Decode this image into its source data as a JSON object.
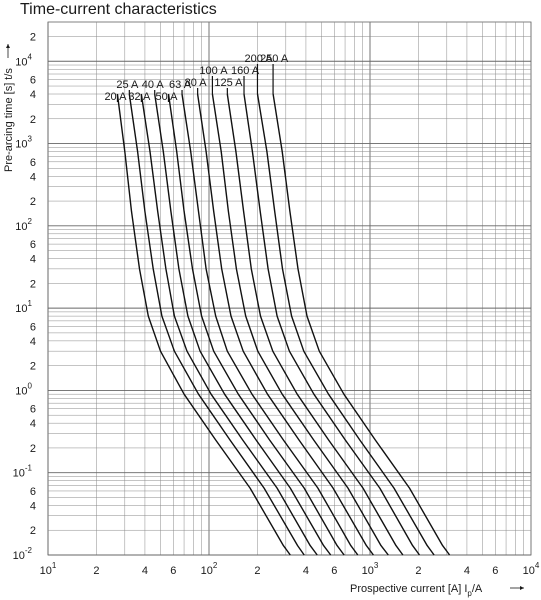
{
  "chart_data": {
    "type": "line",
    "title": "Time-current characteristics",
    "xlabel": "Prospective current [A]  I",
    "xlabel_sub": "p",
    "xlabel_unit": "/A",
    "ylabel": "Pre-arcing time [s]  t/s",
    "x_scale": "log",
    "y_scale": "log",
    "xlim": [
      10,
      10000
    ],
    "ylim": [
      0.01,
      30000
    ],
    "grid": true,
    "x_ticks": [
      {
        "v": 10,
        "base": "10",
        "exp": "1"
      },
      {
        "v": 20,
        "text": "2"
      },
      {
        "v": 40,
        "text": "4"
      },
      {
        "v": 60,
        "text": "6"
      },
      {
        "v": 100,
        "base": "10",
        "exp": "2"
      },
      {
        "v": 200,
        "text": "2"
      },
      {
        "v": 400,
        "text": "4"
      },
      {
        "v": 600,
        "text": "6"
      },
      {
        "v": 1000,
        "base": "10",
        "exp": "3"
      },
      {
        "v": 2000,
        "text": "2"
      },
      {
        "v": 4000,
        "text": "4"
      },
      {
        "v": 6000,
        "text": "6"
      },
      {
        "v": 10000,
        "base": "10",
        "exp": "4"
      }
    ],
    "y_ticks": [
      {
        "v": 0.01,
        "base": "10",
        "exp": "-2"
      },
      {
        "v": 0.02,
        "text": "2"
      },
      {
        "v": 0.04,
        "text": "4"
      },
      {
        "v": 0.06,
        "text": "6"
      },
      {
        "v": 0.1,
        "base": "10",
        "exp": "-1"
      },
      {
        "v": 0.2,
        "text": "2"
      },
      {
        "v": 0.4,
        "text": "4"
      },
      {
        "v": 0.6,
        "text": "6"
      },
      {
        "v": 1,
        "base": "10",
        "exp": "0"
      },
      {
        "v": 2,
        "text": "2"
      },
      {
        "v": 4,
        "text": "4"
      },
      {
        "v": 6,
        "text": "6"
      },
      {
        "v": 10,
        "base": "10",
        "exp": "1"
      },
      {
        "v": 20,
        "text": "2"
      },
      {
        "v": 40,
        "text": "4"
      },
      {
        "v": 60,
        "text": "6"
      },
      {
        "v": 100,
        "base": "10",
        "exp": "2"
      },
      {
        "v": 200,
        "text": "2"
      },
      {
        "v": 400,
        "text": "4"
      },
      {
        "v": 600,
        "text": "6"
      },
      {
        "v": 1000,
        "base": "10",
        "exp": "3"
      },
      {
        "v": 2000,
        "text": "2"
      },
      {
        "v": 4000,
        "text": "4"
      },
      {
        "v": 6000,
        "text": "6"
      },
      {
        "v": 10000,
        "base": "10",
        "exp": "4"
      },
      {
        "v": 20000,
        "text": "2"
      }
    ],
    "series": [
      {
        "name": "20 A",
        "points": [
          [
            27,
            4000
          ],
          [
            30,
            800
          ],
          [
            33,
            150
          ],
          [
            37,
            30
          ],
          [
            42,
            8
          ],
          [
            50,
            3
          ],
          [
            70,
            0.9
          ],
          [
            110,
            0.25
          ],
          [
            180,
            0.065
          ],
          [
            290,
            0.013
          ],
          [
            320,
            0.01
          ]
        ]
      },
      {
        "name": "25 A",
        "points": [
          [
            32,
            4000
          ],
          [
            36,
            800
          ],
          [
            40,
            150
          ],
          [
            45,
            30
          ],
          [
            51,
            8
          ],
          [
            61,
            3
          ],
          [
            86,
            0.9
          ],
          [
            135,
            0.25
          ],
          [
            220,
            0.065
          ],
          [
            355,
            0.013
          ],
          [
            390,
            0.01
          ]
        ]
      },
      {
        "name": "32 A",
        "points": [
          [
            38,
            4000
          ],
          [
            43,
            800
          ],
          [
            48,
            150
          ],
          [
            54,
            30
          ],
          [
            61,
            8
          ],
          [
            73,
            3
          ],
          [
            103,
            0.9
          ],
          [
            162,
            0.25
          ],
          [
            265,
            0.065
          ],
          [
            425,
            0.013
          ],
          [
            470,
            0.01
          ]
        ]
      },
      {
        "name": "40 A",
        "points": [
          [
            46,
            4000
          ],
          [
            52,
            800
          ],
          [
            58,
            150
          ],
          [
            65,
            30
          ],
          [
            74,
            8
          ],
          [
            88,
            3
          ],
          [
            125,
            0.9
          ],
          [
            196,
            0.25
          ],
          [
            320,
            0.065
          ],
          [
            515,
            0.013
          ],
          [
            570,
            0.01
          ]
        ]
      },
      {
        "name": "50 A",
        "points": [
          [
            56,
            4000
          ],
          [
            63,
            800
          ],
          [
            70,
            150
          ],
          [
            79,
            30
          ],
          [
            90,
            8
          ],
          [
            107,
            3
          ],
          [
            152,
            0.9
          ],
          [
            238,
            0.25
          ],
          [
            390,
            0.065
          ],
          [
            625,
            0.013
          ],
          [
            690,
            0.01
          ]
        ]
      },
      {
        "name": "63 A",
        "points": [
          [
            68,
            4000
          ],
          [
            77,
            800
          ],
          [
            86,
            150
          ],
          [
            96,
            30
          ],
          [
            110,
            8
          ],
          [
            130,
            3
          ],
          [
            185,
            0.9
          ],
          [
            290,
            0.25
          ],
          [
            475,
            0.065
          ],
          [
            760,
            0.013
          ],
          [
            840,
            0.01
          ]
        ]
      },
      {
        "name": "80 A",
        "points": [
          [
            85,
            4000
          ],
          [
            96,
            800
          ],
          [
            107,
            150
          ],
          [
            120,
            30
          ],
          [
            137,
            8
          ],
          [
            163,
            3
          ],
          [
            231,
            0.9
          ],
          [
            362,
            0.25
          ],
          [
            590,
            0.065
          ],
          [
            950,
            0.013
          ],
          [
            1050,
            0.01
          ]
        ]
      },
      {
        "name": "100 A",
        "points": [
          [
            105,
            4000
          ],
          [
            119,
            800
          ],
          [
            132,
            150
          ],
          [
            148,
            30
          ],
          [
            169,
            8
          ],
          [
            201,
            3
          ],
          [
            285,
            0.9
          ],
          [
            447,
            0.25
          ],
          [
            730,
            0.065
          ],
          [
            1170,
            0.013
          ],
          [
            1300,
            0.01
          ]
        ]
      },
      {
        "name": "125 A",
        "points": [
          [
            130,
            4000
          ],
          [
            147,
            800
          ],
          [
            164,
            150
          ],
          [
            183,
            30
          ],
          [
            209,
            8
          ],
          [
            249,
            3
          ],
          [
            353,
            0.9
          ],
          [
            553,
            0.25
          ],
          [
            905,
            0.065
          ],
          [
            1450,
            0.013
          ],
          [
            1600,
            0.01
          ]
        ]
      },
      {
        "name": "160 A",
        "points": [
          [
            165,
            4000
          ],
          [
            186,
            800
          ],
          [
            208,
            150
          ],
          [
            233,
            30
          ],
          [
            265,
            8
          ],
          [
            316,
            3
          ],
          [
            448,
            0.9
          ],
          [
            702,
            0.25
          ],
          [
            1150,
            0.065
          ],
          [
            1840,
            0.013
          ],
          [
            2030,
            0.01
          ]
        ]
      },
      {
        "name": "200 A",
        "points": [
          [
            200,
            4000
          ],
          [
            229,
            800
          ],
          [
            256,
            150
          ],
          [
            286,
            30
          ],
          [
            326,
            8
          ],
          [
            388,
            3
          ],
          [
            552,
            0.9
          ],
          [
            864,
            0.25
          ],
          [
            1410,
            0.065
          ],
          [
            2265,
            0.013
          ],
          [
            2500,
            0.01
          ]
        ]
      },
      {
        "name": "250 A",
        "points": [
          [
            250,
            4000
          ],
          [
            285,
            800
          ],
          [
            318,
            150
          ],
          [
            357,
            30
          ],
          [
            406,
            8
          ],
          [
            484,
            3
          ],
          [
            688,
            0.9
          ],
          [
            1078,
            0.25
          ],
          [
            1760,
            0.065
          ],
          [
            2825,
            0.013
          ],
          [
            3120,
            0.01
          ]
        ]
      }
    ]
  }
}
